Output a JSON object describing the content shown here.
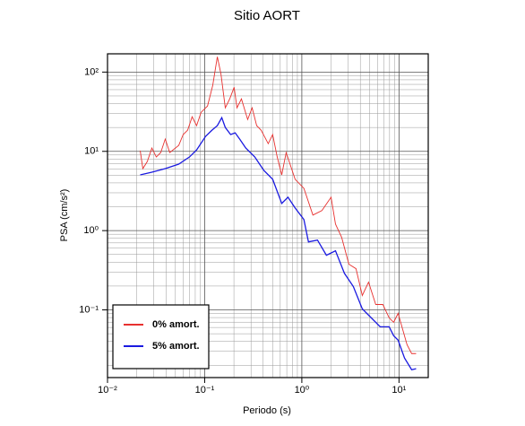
{
  "chart_data": {
    "type": "line",
    "title": "Sitio AORT",
    "xlabel": "Periodo (s)",
    "ylabel": "PSA (cm/s²)",
    "xscale": "log",
    "yscale": "log",
    "grid": true,
    "legend": "lower left",
    "xlim": [
      0.01,
      20
    ],
    "ylim": [
      0.014,
      170
    ],
    "xticks": [
      {
        "value": 0.01,
        "label": "10⁻²"
      },
      {
        "value": 0.1,
        "label": "10⁻¹"
      },
      {
        "value": 1,
        "label": "10⁰"
      },
      {
        "value": 10,
        "label": "10¹"
      }
    ],
    "yticks": [
      {
        "value": 0.1,
        "label": "10⁻¹"
      },
      {
        "value": 1,
        "label": "10⁰"
      },
      {
        "value": 10,
        "label": "10¹"
      },
      {
        "value": 100,
        "label": "10²"
      }
    ],
    "series": [
      {
        "name": "0% amort.",
        "color": "#e8312f",
        "x": [
          0.0217,
          0.0231,
          0.0257,
          0.0286,
          0.0318,
          0.0353,
          0.0393,
          0.0437,
          0.0541,
          0.0601,
          0.0668,
          0.0743,
          0.0826,
          0.0919,
          0.107,
          0.121,
          0.135,
          0.147,
          0.163,
          0.181,
          0.201,
          0.215,
          0.239,
          0.277,
          0.308,
          0.343,
          0.381,
          0.451,
          0.501,
          0.558,
          0.621,
          0.69,
          0.853,
          1.05,
          1.3,
          1.61,
          2.0,
          2.22,
          2.57,
          3.05,
          3.61,
          4.19,
          4.86,
          5.76,
          6.82,
          7.92,
          8.81,
          9.79,
          12.1,
          13.5,
          15.0
        ],
        "values": [
          10.2,
          6.05,
          7.46,
          11.0,
          8.49,
          9.66,
          14.3,
          9.66,
          11.9,
          16.3,
          18.5,
          27.3,
          21.1,
          31.1,
          37.3,
          67.8,
          156,
          94.9,
          35.4,
          45.9,
          64.3,
          35.4,
          45.9,
          25.2,
          35.4,
          21.1,
          18.5,
          12.5,
          16.3,
          8.49,
          5.05,
          9.66,
          4.44,
          3.42,
          1.57,
          1.79,
          2.64,
          1.21,
          0.821,
          0.377,
          0.331,
          0.152,
          0.224,
          0.117,
          0.117,
          0.0794,
          0.0697,
          0.0904,
          0.0364,
          0.0281,
          0.0281
        ]
      },
      {
        "name": "5% amort.",
        "color": "#1a1ae0",
        "x": [
          0.0217,
          0.0286,
          0.0393,
          0.0541,
          0.0697,
          0.0826,
          0.102,
          0.119,
          0.135,
          0.15,
          0.163,
          0.185,
          0.206,
          0.229,
          0.265,
          0.328,
          0.406,
          0.501,
          0.621,
          0.72,
          0.853,
          1.05,
          1.17,
          1.45,
          1.79,
          2.22,
          2.74,
          3.39,
          4.19,
          5.18,
          6.4,
          7.92,
          8.81,
          9.79,
          11.4,
          13.5,
          15.0
        ],
        "values": [
          5.05,
          5.46,
          6.05,
          6.9,
          8.49,
          10.4,
          15.4,
          18.5,
          21.1,
          26.6,
          20.0,
          16.3,
          17.1,
          14.3,
          11.0,
          8.49,
          5.75,
          4.44,
          2.2,
          2.64,
          1.93,
          1.38,
          0.721,
          0.759,
          0.489,
          0.556,
          0.29,
          0.197,
          0.103,
          0.0794,
          0.0612,
          0.0612,
          0.0472,
          0.0415,
          0.0247,
          0.0176,
          0.0181
        ]
      }
    ]
  }
}
